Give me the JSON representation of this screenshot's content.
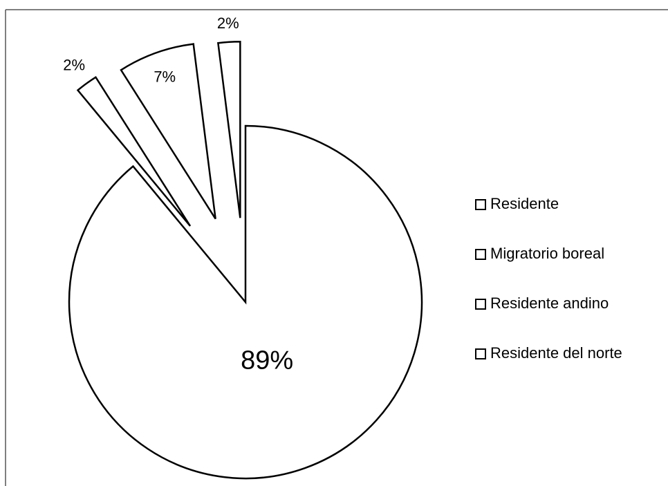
{
  "chart_data": {
    "type": "pie",
    "categories": [
      "Residente",
      "Migratorio boreal",
      "Residente andino",
      "Residente del norte"
    ],
    "values": [
      89,
      2,
      7,
      2
    ],
    "value_labels": [
      "89%",
      "2%",
      "7%",
      "2%"
    ],
    "color": "#ffffff",
    "legend": "right"
  }
}
